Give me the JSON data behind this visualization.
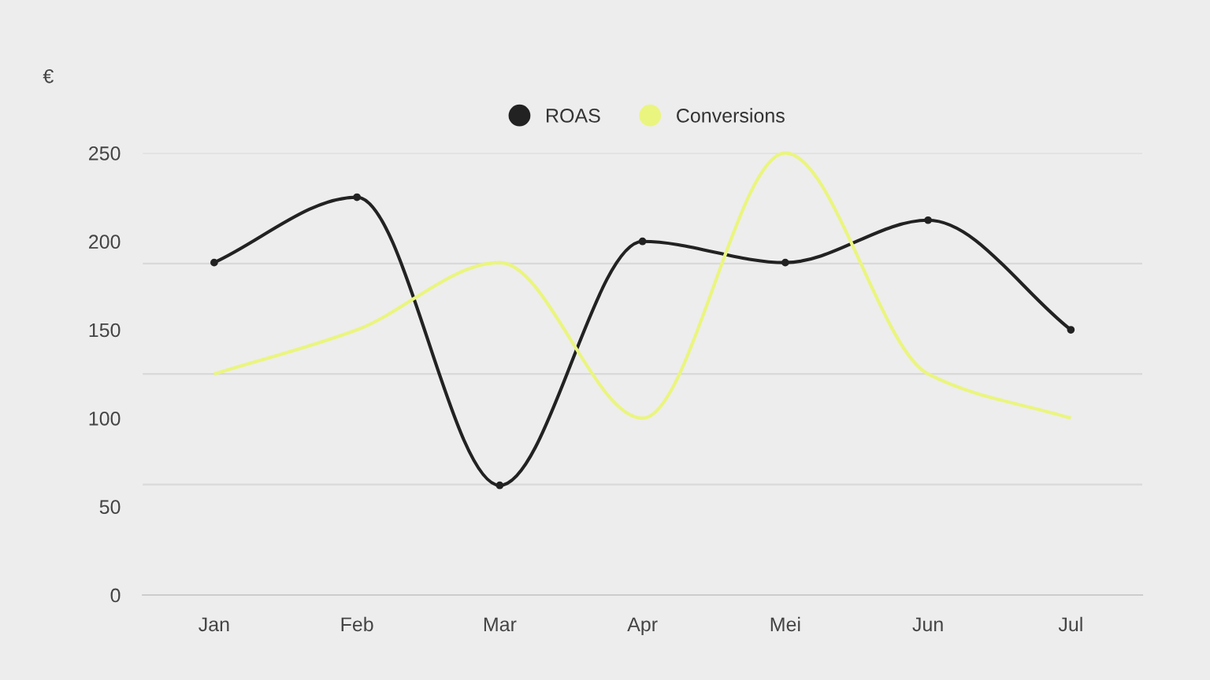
{
  "chart_data": {
    "type": "line",
    "ylabel": "€",
    "categories": [
      "Jan",
      "Feb",
      "Mar",
      "Apr",
      "Mei",
      "Jun",
      "Jul"
    ],
    "series": [
      {
        "name": "ROAS",
        "color": "#222222",
        "marker": "circle",
        "values": [
          188,
          225,
          62,
          200,
          188,
          212,
          150
        ]
      },
      {
        "name": "Conversions",
        "color": "#eaf57f",
        "marker": "none",
        "values": [
          125,
          150,
          188,
          100,
          250,
          125,
          100
        ]
      }
    ],
    "ylim": [
      0,
      250
    ],
    "yticks": [
      0,
      50,
      100,
      150,
      200,
      250
    ],
    "ref_lines": [
      {
        "axis": "y",
        "value": 62.5,
        "color": "#d9d9d9"
      },
      {
        "axis": "y",
        "value": 125,
        "color": "#d9d9d9"
      },
      {
        "axis": "y",
        "value": 187.5,
        "color": "#d9d9d9"
      },
      {
        "axis": "y",
        "value": 250,
        "color": "#d9d9d9"
      }
    ],
    "legend": "top",
    "grid": false
  }
}
